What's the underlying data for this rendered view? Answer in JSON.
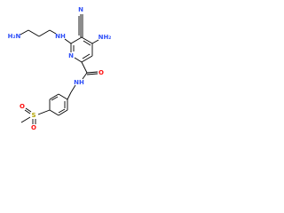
{
  "atoms": [
    {
      "label": "H₂N"
    },
    {
      "label": "NH"
    },
    {
      "label": "N"
    },
    {
      "label": "N"
    },
    {
      "label": "NH₂"
    },
    {
      "label": "O"
    },
    {
      "label": "NH"
    },
    {
      "label": "S"
    },
    {
      "label": "O"
    },
    {
      "label": "O"
    }
  ]
}
